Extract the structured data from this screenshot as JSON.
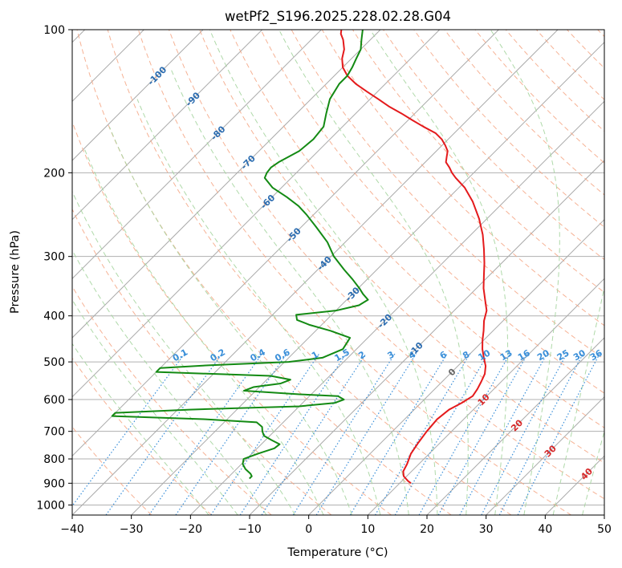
{
  "chart_data": {
    "type": "skew-t",
    "title": "wetPf2_S196.2025.228.02.28.G04",
    "xlabel": "Temperature (°C)",
    "ylabel": "Pressure (hPa)",
    "xlim": [
      -40,
      50
    ],
    "ylim": [
      1050,
      100
    ],
    "y_scale": "log",
    "grid": true,
    "x_ticks": [
      -40,
      -30,
      -20,
      -10,
      0,
      10,
      20,
      30,
      40,
      50
    ],
    "y_ticks": [
      1000,
      900,
      800,
      700,
      600,
      500,
      400,
      300,
      200,
      100
    ],
    "x_tick_labels": [
      "−40",
      "−30",
      "−20",
      "−10",
      "0",
      "10",
      "20",
      "30",
      "40",
      "50"
    ],
    "y_tick_labels": [
      "1000",
      "900",
      "800",
      "700",
      "600",
      "500",
      "400",
      "300",
      "200",
      "100"
    ],
    "colors": {
      "temperature": "#e41a1c",
      "dewpoint": "#138a13",
      "isotherm": "#aaaaaa",
      "dry_adiabat": "#f4a582",
      "moist_adiabat": "#a6d5a0",
      "mixing_ratio": "#3a8fd9",
      "isotherm_label_cold": "#2b6cb0",
      "isotherm_label_warm": "#d62728",
      "zero_label": "#666666",
      "mixing_label": "#3a8fd9"
    },
    "isotherm_labels": [
      {
        "text": "-100",
        "t": -100,
        "p": 125
      },
      {
        "text": "-90",
        "t": -90,
        "p": 140
      },
      {
        "text": "-80",
        "t": -80,
        "p": 165
      },
      {
        "text": "-70",
        "t": -70,
        "p": 190
      },
      {
        "text": "-60",
        "t": -60,
        "p": 230
      },
      {
        "text": "-50",
        "t": -50,
        "p": 270
      },
      {
        "text": "-40",
        "t": -40,
        "p": 310
      },
      {
        "text": "-30",
        "t": -30,
        "p": 360
      },
      {
        "text": "-20",
        "t": -20,
        "p": 410
      },
      {
        "text": "-10",
        "t": -10,
        "p": 470
      },
      {
        "text": "0",
        "t": 0,
        "p": 525
      },
      {
        "text": "10",
        "t": 10,
        "p": 600
      },
      {
        "text": "20",
        "t": 20,
        "p": 680
      },
      {
        "text": "30",
        "t": 30,
        "p": 770
      },
      {
        "text": "40",
        "t": 40,
        "p": 860
      }
    ],
    "mixing_ratios": [
      {
        "text": "0.1",
        "w": 0.1
      },
      {
        "text": "0.2",
        "w": 0.2
      },
      {
        "text": "0.4",
        "w": 0.4
      },
      {
        "text": "0.6",
        "w": 0.6
      },
      {
        "text": "1",
        "w": 1
      },
      {
        "text": "1.5",
        "w": 1.5
      },
      {
        "text": "2",
        "w": 2
      },
      {
        "text": "3",
        "w": 3
      },
      {
        "text": "4",
        "w": 4
      },
      {
        "text": "6",
        "w": 6
      },
      {
        "text": "8",
        "w": 8
      },
      {
        "text": "10",
        "w": 10
      },
      {
        "text": "13",
        "w": 13
      },
      {
        "text": "16",
        "w": 16
      },
      {
        "text": "20",
        "w": 20
      },
      {
        "text": "25",
        "w": 25
      },
      {
        "text": "30",
        "w": 30
      },
      {
        "text": "36",
        "w": 36
      }
    ],
    "mixing_label_pressure": 490,
    "series": [
      {
        "name": "temperature",
        "points": [
          [
            900,
            11.9
          ],
          [
            890,
            11.0
          ],
          [
            870,
            9.5
          ],
          [
            850,
            8.6
          ],
          [
            820,
            8.0
          ],
          [
            780,
            6.9
          ],
          [
            740,
            6.3
          ],
          [
            700,
            5.8
          ],
          [
            660,
            5.5
          ],
          [
            630,
            5.9
          ],
          [
            610,
            6.9
          ],
          [
            590,
            7.6
          ],
          [
            570,
            7.2
          ],
          [
            550,
            6.6
          ],
          [
            530,
            5.9
          ],
          [
            510,
            4.7
          ],
          [
            490,
            3.0
          ],
          [
            470,
            1.3
          ],
          [
            450,
            -0.2
          ],
          [
            430,
            -1.6
          ],
          [
            410,
            -3.2
          ],
          [
            390,
            -4.5
          ],
          [
            370,
            -6.6
          ],
          [
            350,
            -8.8
          ],
          [
            330,
            -10.8
          ],
          [
            310,
            -12.9
          ],
          [
            290,
            -15.3
          ],
          [
            270,
            -18.0
          ],
          [
            250,
            -21.3
          ],
          [
            230,
            -25.3
          ],
          [
            215,
            -29.0
          ],
          [
            205,
            -32.2
          ],
          [
            200,
            -33.7
          ],
          [
            195,
            -35.0
          ],
          [
            190,
            -36.5
          ],
          [
            185,
            -37.3
          ],
          [
            180,
            -38.1
          ],
          [
            175,
            -39.5
          ],
          [
            170,
            -41.1
          ],
          [
            165,
            -43.2
          ],
          [
            160,
            -46.3
          ],
          [
            155,
            -49.3
          ],
          [
            150,
            -52.3
          ],
          [
            145,
            -55.6
          ],
          [
            140,
            -58.6
          ],
          [
            135,
            -61.8
          ],
          [
            130,
            -65.0
          ],
          [
            125,
            -67.8
          ],
          [
            120,
            -70.0
          ],
          [
            115,
            -71.6
          ],
          [
            110,
            -72.8
          ],
          [
            105,
            -74.6
          ],
          [
            102,
            -76.0
          ],
          [
            100,
            -76.6
          ]
        ]
      },
      {
        "name": "dewpoint",
        "points": [
          [
            880,
            -16.2
          ],
          [
            870,
            -16.2
          ],
          [
            860,
            -16.8
          ],
          [
            840,
            -18.5
          ],
          [
            820,
            -19.8
          ],
          [
            800,
            -20.5
          ],
          [
            780,
            -19.0
          ],
          [
            760,
            -17.1
          ],
          [
            745,
            -16.9
          ],
          [
            730,
            -19.0
          ],
          [
            715,
            -21.0
          ],
          [
            700,
            -22.0
          ],
          [
            685,
            -22.8
          ],
          [
            670,
            -24.5
          ],
          [
            660,
            -34.0
          ],
          [
            650,
            -50.0
          ],
          [
            640,
            -50.0
          ],
          [
            630,
            -38.0
          ],
          [
            620,
            -20.0
          ],
          [
            610,
            -14.6
          ],
          [
            600,
            -13.6
          ],
          [
            590,
            -15.2
          ],
          [
            585,
            -22.0
          ],
          [
            575,
            -32.0
          ],
          [
            565,
            -31.0
          ],
          [
            555,
            -27.0
          ],
          [
            545,
            -26.0
          ],
          [
            535,
            -30.0
          ],
          [
            525,
            -50.0
          ],
          [
            515,
            -50.0
          ],
          [
            508,
            -42.0
          ],
          [
            500,
            -29.3
          ],
          [
            490,
            -24.3
          ],
          [
            470,
            -22.3
          ],
          [
            445,
            -23.0
          ],
          [
            430,
            -27.5
          ],
          [
            418,
            -32.0
          ],
          [
            408,
            -35.0
          ],
          [
            398,
            -36.0
          ],
          [
            390,
            -30.0
          ],
          [
            380,
            -27.0
          ],
          [
            370,
            -26.4
          ],
          [
            360,
            -28.2
          ],
          [
            350,
            -29.8
          ],
          [
            335,
            -32.5
          ],
          [
            320,
            -35.5
          ],
          [
            300,
            -39.5
          ],
          [
            280,
            -43.0
          ],
          [
            260,
            -47.5
          ],
          [
            245,
            -51.2
          ],
          [
            235,
            -54.0
          ],
          [
            225,
            -57.5
          ],
          [
            215,
            -61.5
          ],
          [
            205,
            -64.5
          ],
          [
            200,
            -65.0
          ],
          [
            195,
            -65.2
          ],
          [
            190,
            -64.8
          ],
          [
            180,
            -63.2
          ],
          [
            170,
            -62.8
          ],
          [
            160,
            -63.2
          ],
          [
            150,
            -65.0
          ],
          [
            140,
            -66.8
          ],
          [
            130,
            -67.8
          ],
          [
            125,
            -67.8
          ],
          [
            120,
            -68.4
          ],
          [
            115,
            -69.2
          ],
          [
            110,
            -70.0
          ],
          [
            105,
            -71.5
          ],
          [
            100,
            -73.0
          ]
        ]
      }
    ]
  }
}
